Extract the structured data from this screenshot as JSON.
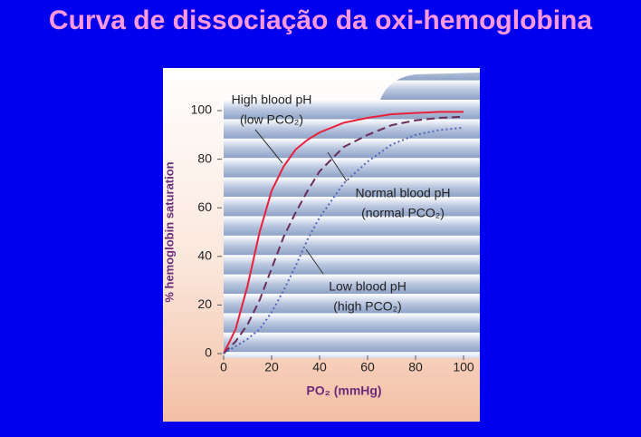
{
  "chart_data": {
    "type": "line",
    "title": "Curva de dissociação da oxi-hemoglobina",
    "x_label": "PO₂ (mmHg)",
    "y_label": "% hemoglobin saturation",
    "x": [
      0,
      5,
      10,
      15,
      20,
      25,
      30,
      35,
      40,
      50,
      60,
      70,
      80,
      90,
      100
    ],
    "series": [
      {
        "name": "High blood pH",
        "color": "#e8203a",
        "dash": "solid",
        "values": [
          0,
          10,
          28,
          50,
          67,
          77,
          84,
          88,
          91,
          95,
          97,
          98.5,
          99,
          99.5,
          99.5
        ]
      },
      {
        "name": "Normal blood pH",
        "color": "#6a2d5a",
        "dash": "dashed",
        "values": [
          0,
          5,
          12,
          22,
          35,
          48,
          58,
          67,
          75,
          85,
          90,
          94,
          96,
          97,
          97.5
        ]
      },
      {
        "name": "Low blood pH",
        "color": "#5566b8",
        "dash": "dotted",
        "values": [
          0,
          3,
          6,
          10,
          17,
          26,
          36,
          47,
          56,
          70,
          79,
          86,
          90,
          92,
          93
        ]
      }
    ],
    "annotations": [
      [
        "High blood pH",
        "(low PCO₂)"
      ],
      [
        "Normal blood pH",
        "(normal PCO₂)"
      ],
      [
        "Low blood pH",
        "(high PCO₂)"
      ]
    ],
    "xlim": [
      0,
      100
    ],
    "ylim": [
      0,
      100
    ],
    "xticks": [
      0,
      20,
      40,
      60,
      80,
      100
    ],
    "yticks": [
      0,
      20,
      40,
      60,
      80,
      100
    ],
    "grid": false
  }
}
